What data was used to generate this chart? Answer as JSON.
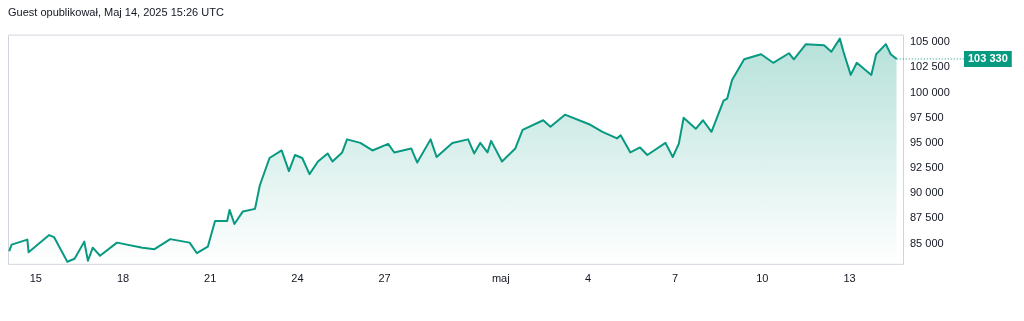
{
  "chart_data": {
    "type": "area",
    "title": "Guest opublikował, Maj 14, 2025 15:26 UTC",
    "x": [
      "2025-04-14T02:00",
      "2025-04-14T04:00",
      "2025-04-14T17:00",
      "2025-04-14T18:00",
      "2025-04-15T11:00",
      "2025-04-15T15:00",
      "2025-04-16T02:00",
      "2025-04-16T08:00",
      "2025-04-16T16:00",
      "2025-04-16T19:00",
      "2025-04-16T23:00",
      "2025-04-17T05:00",
      "2025-04-17T19:00",
      "2025-04-18T16:00",
      "2025-04-19T02:00",
      "2025-04-19T15:00",
      "2025-04-20T07:00",
      "2025-04-20T13:00",
      "2025-04-20T22:00",
      "2025-04-21T04:00",
      "2025-04-21T14:00",
      "2025-04-21T16:00",
      "2025-04-21T20:00",
      "2025-04-22T03:00",
      "2025-04-22T13:00",
      "2025-04-22T17:00",
      "2025-04-23T01:00",
      "2025-04-23T11:00",
      "2025-04-23T17:00",
      "2025-04-23T22:00",
      "2025-04-24T04:00",
      "2025-04-24T10:00",
      "2025-04-24T17:00",
      "2025-04-25T01:00",
      "2025-04-25T05:00",
      "2025-04-25T13:00",
      "2025-04-25T17:00",
      "2025-04-26T04:00",
      "2025-04-26T14:00",
      "2025-04-27T03:00",
      "2025-04-27T08:00",
      "2025-04-27T22:00",
      "2025-04-28T03:00",
      "2025-04-28T14:00",
      "2025-04-28T19:00",
      "2025-04-29T08:00",
      "2025-04-29T21:00",
      "2025-04-30T02:00",
      "2025-04-30T07:00",
      "2025-04-30T13:00",
      "2025-04-30T16:00",
      "2025-05-01T01:00",
      "2025-05-01T12:00",
      "2025-05-01T18:00",
      "2025-05-02T11:00",
      "2025-05-02T17:00",
      "2025-05-03T05:00",
      "2025-05-04T02:00",
      "2025-05-04T12:00",
      "2025-05-05T00:00",
      "2025-05-05T03:00",
      "2025-05-05T11:00",
      "2025-05-05T19:00",
      "2025-05-06T01:00",
      "2025-05-06T16:00",
      "2025-05-06T22:00",
      "2025-05-07T03:00",
      "2025-05-07T07:00",
      "2025-05-07T17:00",
      "2025-05-07T23:00",
      "2025-05-08T06:00",
      "2025-05-08T16:00",
      "2025-05-08T19:00",
      "2025-05-08T23:00",
      "2025-05-09T09:00",
      "2025-05-09T23:00",
      "2025-05-10T09:00",
      "2025-05-10T22:00",
      "2025-05-11T02:00",
      "2025-05-11T12:00",
      "2025-05-12T03:00",
      "2025-05-12T09:00",
      "2025-05-12T16:00",
      "2025-05-12T19:00",
      "2025-05-13T01:00",
      "2025-05-13T06:00",
      "2025-05-13T18:00",
      "2025-05-13T22:00",
      "2025-05-14T06:00",
      "2025-05-14T10:00",
      "2025-05-14T15:00"
    ],
    "series": [
      {
        "color": "#089981",
        "values": [
          84250,
          84900,
          85400,
          84150,
          85850,
          85650,
          83200,
          83500,
          85200,
          83300,
          84600,
          83800,
          85100,
          84600,
          84450,
          85450,
          85100,
          84050,
          84700,
          87250,
          87250,
          88350,
          86950,
          88200,
          88450,
          90800,
          93500,
          94250,
          92200,
          93800,
          93500,
          91900,
          93150,
          93950,
          93150,
          94050,
          95350,
          95000,
          94250,
          94900,
          94050,
          94450,
          93050,
          95350,
          93600,
          95000,
          95350,
          93950,
          95000,
          94050,
          95200,
          93150,
          94450,
          96300,
          97250,
          96600,
          97800,
          96800,
          96100,
          95450,
          95750,
          94050,
          94550,
          93800,
          95000,
          93600,
          94900,
          97500,
          96400,
          97250,
          96100,
          99200,
          99400,
          101250,
          103300,
          103800,
          102950,
          103900,
          103300,
          104800,
          104700,
          104050,
          105350,
          104050,
          101750,
          102950,
          101750,
          103800,
          104800,
          103800,
          103330
        ]
      }
    ],
    "xlim": [
      "2025-04-14T01:00",
      "2025-05-14T21:00"
    ],
    "xticks": [
      {
        "value": "2025-04-15",
        "label": "15"
      },
      {
        "value": "2025-04-18",
        "label": "18"
      },
      {
        "value": "2025-04-21",
        "label": "21"
      },
      {
        "value": "2025-04-24",
        "label": "24"
      },
      {
        "value": "2025-04-27",
        "label": "27"
      },
      {
        "value": "2025-05-01",
        "label": "maj"
      },
      {
        "value": "2025-05-04",
        "label": "4"
      },
      {
        "value": "2025-05-07",
        "label": "7"
      },
      {
        "value": "2025-05-10",
        "label": "10"
      },
      {
        "value": "2025-05-13",
        "label": "13"
      }
    ],
    "ylim": [
      82900,
      105750
    ],
    "yticks": [
      {
        "value": 85000,
        "label": "85 000"
      },
      {
        "value": 87500,
        "label": "87 500"
      },
      {
        "value": 90000,
        "label": "90 000"
      },
      {
        "value": 92500,
        "label": "92 500"
      },
      {
        "value": 95000,
        "label": "95 000"
      },
      {
        "value": 97500,
        "label": "97 500"
      },
      {
        "value": 100000,
        "label": "100 000"
      },
      {
        "value": 102500,
        "label": "102 500"
      },
      {
        "value": 105000,
        "label": "105 000"
      }
    ],
    "annotations": [
      {
        "text": "103 330",
        "x": "2025-05-14T15:00",
        "y": 103330
      }
    ],
    "grid": false,
    "legend": false
  }
}
